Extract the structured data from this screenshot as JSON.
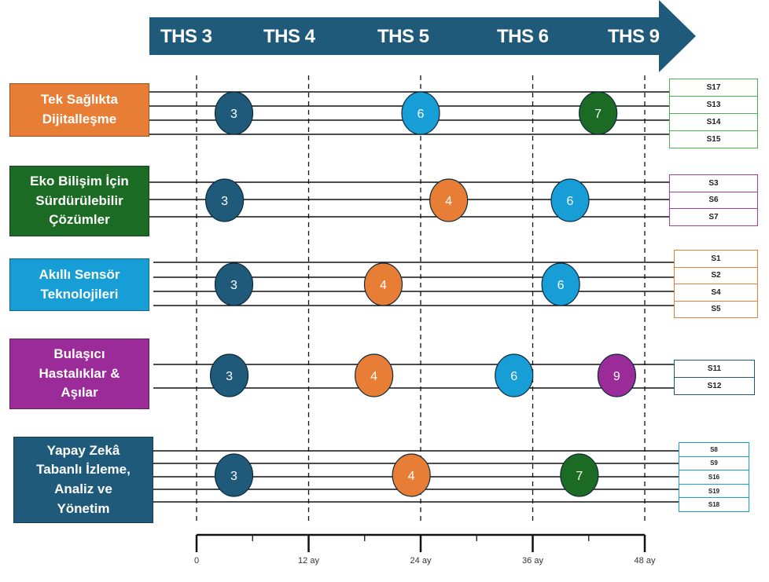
{
  "colors": {
    "navy": "#1f5a7a",
    "orange": "#e87d35",
    "green": "#1c6b25",
    "cyan": "#179ed6",
    "purple": "#9b2b99",
    "slate": "#1f5a7a"
  },
  "header": {
    "phases": [
      "THS 3",
      "THS 4",
      "THS 5",
      "THS 6",
      "THS 9"
    ]
  },
  "rows": [
    {
      "label": "Tek Sağlıkta\nDijitalleşme",
      "color": "#e87d35",
      "s_color": "#4caf50",
      "s_labels": [
        "S17",
        "S13",
        "S14",
        "S15"
      ],
      "markers": [
        {
          "num": "3",
          "month": 4,
          "color": "#1f5a7a"
        },
        {
          "num": "6",
          "month": 24,
          "color": "#179ed6"
        },
        {
          "num": "7",
          "month": 43,
          "color": "#1c6b25"
        }
      ]
    },
    {
      "label": "Eko Bilişim İçin\nSürdürülebilir\nÇözümler",
      "color": "#1c6b25",
      "s_color": "#a040a0",
      "s_labels": [
        "S3",
        "S6",
        "S7"
      ],
      "markers": [
        {
          "num": "3",
          "month": 3,
          "color": "#1f5a7a"
        },
        {
          "num": "4",
          "month": 27,
          "color": "#e87d35"
        },
        {
          "num": "6",
          "month": 40,
          "color": "#179ed6"
        }
      ]
    },
    {
      "label": "Akıllı Sensör\nTeknolojileri",
      "color": "#179ed6",
      "s_color": "#e87d35",
      "s_labels": [
        "S1",
        "S2",
        "S4",
        "S5"
      ],
      "markers": [
        {
          "num": "3",
          "month": 4,
          "color": "#1f5a7a"
        },
        {
          "num": "4",
          "month": 20,
          "color": "#e87d35"
        },
        {
          "num": "6",
          "month": 39,
          "color": "#179ed6"
        }
      ]
    },
    {
      "label": "Bulaşıcı\nHastalıklar &\nAşılar",
      "color": "#9b2b99",
      "s_color": "#1f5a7a",
      "s_labels": [
        "S11",
        "S12"
      ],
      "markers": [
        {
          "num": "3",
          "month": 3.5,
          "color": "#1f5a7a"
        },
        {
          "num": "4",
          "month": 19,
          "color": "#e87d35"
        },
        {
          "num": "6",
          "month": 34,
          "color": "#179ed6"
        },
        {
          "num": "9",
          "month": 45,
          "color": "#9b2b99"
        }
      ]
    },
    {
      "label": "Yapay Zekâ\nTabanlı İzleme,\nAnaliz ve\nYönetim",
      "color": "#1f5a7a",
      "s_color": "#179ed6",
      "s_labels": [
        "S8",
        "S9",
        "S16",
        "S19",
        "S18"
      ],
      "markers": [
        {
          "num": "3",
          "month": 4,
          "color": "#1f5a7a"
        },
        {
          "num": "4",
          "month": 23,
          "color": "#e87d35"
        },
        {
          "num": "7",
          "month": 41,
          "color": "#1c6b25"
        }
      ]
    }
  ],
  "axis": {
    "ticks": [
      "0",
      "12 ay",
      "24 ay",
      "36 ay",
      "48 ay"
    ]
  }
}
